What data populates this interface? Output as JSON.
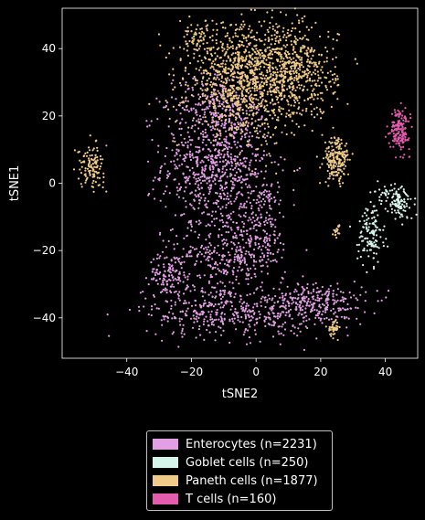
{
  "chart_data": {
    "type": "scatter",
    "title": "",
    "xlabel": "tSNE2",
    "ylabel": "tSNE1",
    "xlim": [
      -60,
      50
    ],
    "ylim": [
      -52,
      52
    ],
    "xticks": [
      -40,
      -20,
      0,
      20,
      40
    ],
    "yticks": [
      -40,
      -20,
      0,
      20,
      40
    ],
    "grid": false,
    "legend_position": "bottom-center",
    "series": [
      {
        "name": "Enterocytes (n=2231)",
        "color": "#e29fe3",
        "n": 2231,
        "clusters": [
          {
            "cx": -12,
            "cy": 6,
            "sx": 8.5,
            "sy": 11,
            "w": 0.38
          },
          {
            "cx": -12,
            "cy": 24,
            "sx": 6,
            "sy": 5,
            "w": 0.07
          },
          {
            "cx": 2,
            "cy": -12,
            "sx": 4,
            "sy": 7,
            "w": 0.08
          },
          {
            "cx": -10,
            "cy": -22,
            "sx": 8,
            "sy": 5,
            "w": 0.12
          },
          {
            "cx": -10,
            "cy": -38,
            "sx": 12,
            "sy": 4,
            "w": 0.17
          },
          {
            "cx": 18,
            "cy": -36,
            "sx": 8,
            "sy": 3.5,
            "w": 0.13
          },
          {
            "cx": -27,
            "cy": -27,
            "sx": 3,
            "sy": 3,
            "w": 0.05
          }
        ]
      },
      {
        "name": "Goblet cells (n=250)",
        "color": "#d6f5ea",
        "n": 250,
        "clusters": [
          {
            "cx": 35.5,
            "cy": -15,
            "sx": 2,
            "sy": 4.5,
            "w": 0.5
          },
          {
            "cx": 44.5,
            "cy": -6,
            "sx": 2,
            "sy": 2.5,
            "w": 0.4
          },
          {
            "cx": 40,
            "cy": -3,
            "sx": 1.5,
            "sy": 1.5,
            "w": 0.1
          }
        ]
      },
      {
        "name": "Paneth cells (n=1877)",
        "color": "#f0ca88",
        "n": 1877,
        "clusters": [
          {
            "cx": -3,
            "cy": 31,
            "sx": 9,
            "sy": 8,
            "w": 0.55
          },
          {
            "cx": 13,
            "cy": 33,
            "sx": 6,
            "sy": 7,
            "w": 0.22
          },
          {
            "cx": -18,
            "cy": 42,
            "sx": 3,
            "sy": 3,
            "w": 0.04
          },
          {
            "cx": 25,
            "cy": 7,
            "sx": 2,
            "sy": 3.5,
            "w": 0.1
          },
          {
            "cx": -51,
            "cy": 5,
            "sx": 2,
            "sy": 3,
            "w": 0.06
          },
          {
            "cx": 24,
            "cy": -43,
            "sx": 0.8,
            "sy": 1.2,
            "w": 0.02
          },
          {
            "cx": 25,
            "cy": -14,
            "sx": 0.8,
            "sy": 1,
            "w": 0.01
          }
        ]
      },
      {
        "name": "T cells (n=160)",
        "color": "#e45cae",
        "n": 160,
        "clusters": [
          {
            "cx": 44.5,
            "cy": 16,
            "sx": 1.5,
            "sy": 3,
            "w": 1.0
          }
        ]
      }
    ]
  }
}
